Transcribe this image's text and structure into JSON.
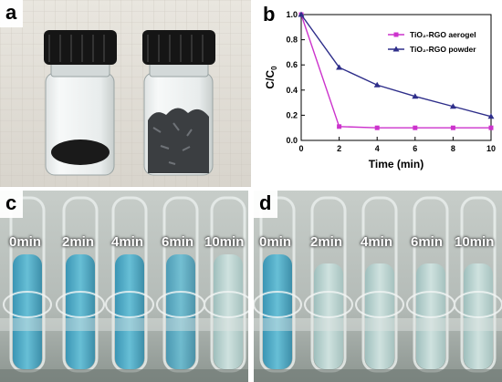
{
  "panels": {
    "a": {
      "letter": "a"
    },
    "b": {
      "letter": "b"
    },
    "c": {
      "letter": "c",
      "labels": [
        "0min",
        "2min",
        "4min",
        "6min",
        "10min"
      ]
    },
    "d": {
      "letter": "d",
      "labels": [
        "0min",
        "2min",
        "4min",
        "6min",
        "10min"
      ]
    }
  },
  "chart_data": {
    "type": "line",
    "xlabel": "Time (min)",
    "ylabel": "C/C",
    "ylabel_sub": "0",
    "xlim": [
      0,
      10
    ],
    "ylim": [
      0.0,
      1.0
    ],
    "xticks": [
      "0",
      "2",
      "4",
      "6",
      "8",
      "10"
    ],
    "yticks": [
      "0.0",
      "0.2",
      "0.4",
      "0.6",
      "0.8",
      "1.0"
    ],
    "legend_position": "top-right",
    "series": [
      {
        "name": "TiO₂-RGO aerogel",
        "color": "#cc33cc",
        "marker": "square",
        "x": [
          0,
          2,
          4,
          6,
          8,
          10
        ],
        "y": [
          1.0,
          0.11,
          0.1,
          0.1,
          0.1,
          0.1
        ]
      },
      {
        "name": "TiO₂-RGO powder",
        "color": "#2e2e8a",
        "marker": "triangle",
        "x": [
          0,
          2,
          4,
          6,
          8,
          10
        ],
        "y": [
          1.0,
          0.58,
          0.44,
          0.35,
          0.27,
          0.19
        ]
      }
    ]
  }
}
